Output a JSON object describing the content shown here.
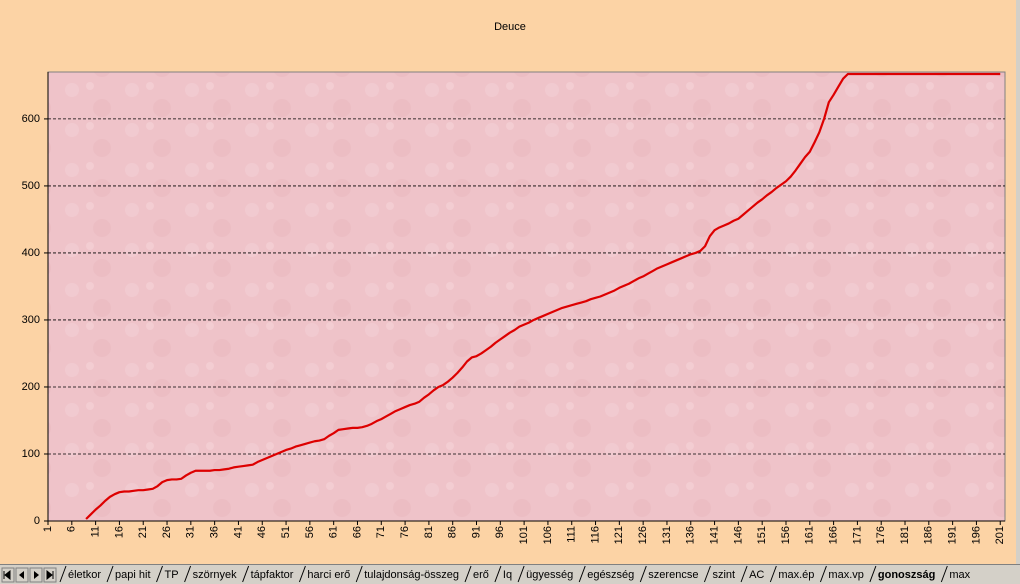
{
  "chart_data": {
    "type": "line",
    "title": "Deuce",
    "x": [
      1,
      2,
      3,
      4,
      5,
      6,
      7,
      8,
      9,
      10,
      11,
      12,
      13,
      14,
      15,
      16,
      17,
      18,
      19,
      20,
      21,
      22,
      23,
      24,
      25,
      26,
      27,
      28,
      29,
      30,
      31,
      32,
      33,
      34,
      35,
      36,
      37,
      38,
      39,
      40,
      41,
      42,
      43,
      44,
      45,
      46,
      47,
      48,
      49,
      50,
      51,
      52,
      53,
      54,
      55,
      56,
      57,
      58,
      59,
      60,
      61,
      62,
      63,
      64,
      65,
      66,
      67,
      68,
      69,
      70,
      71,
      72,
      73,
      74,
      75,
      76,
      77,
      78,
      79,
      80,
      81,
      82,
      83,
      84,
      85,
      86,
      87,
      88,
      89,
      90,
      91,
      92,
      93,
      94,
      95,
      96,
      97,
      98,
      99,
      100,
      101,
      102,
      103,
      104,
      105,
      106,
      107,
      108,
      109,
      110,
      111,
      112,
      113,
      114,
      115,
      116,
      117,
      118,
      119,
      120,
      121,
      122,
      123,
      124,
      125,
      126,
      127,
      128,
      129,
      130,
      131,
      132,
      133,
      134,
      135,
      136,
      137,
      138,
      139,
      140,
      141,
      142,
      143,
      144,
      145,
      146,
      147,
      148,
      149,
      150,
      151,
      152,
      153,
      154,
      155,
      156,
      157,
      158,
      159,
      160,
      161,
      162,
      163,
      164,
      165,
      166,
      167,
      168,
      169,
      170,
      171,
      172,
      173,
      174,
      175,
      176,
      177,
      178,
      179,
      180,
      181,
      182,
      183,
      184,
      185,
      186,
      187,
      188,
      189,
      190,
      191,
      192,
      193,
      194,
      195,
      196,
      197,
      198,
      199,
      200,
      201
    ],
    "series": [
      {
        "color": "#dd0000",
        "values": [
          null,
          null,
          null,
          null,
          null,
          null,
          null,
          null,
          3,
          10,
          17,
          23,
          30,
          36,
          40,
          43,
          44,
          44,
          45,
          46,
          46,
          47,
          48,
          52,
          58,
          61,
          62,
          62,
          63,
          68,
          72,
          75,
          75,
          75,
          75,
          76,
          76,
          77,
          78,
          80,
          81,
          82,
          83,
          84,
          88,
          91,
          94,
          97,
          100,
          103,
          106,
          108,
          111,
          113,
          115,
          117,
          119,
          120,
          122,
          127,
          131,
          136,
          137,
          138,
          139,
          139,
          140,
          142,
          145,
          149,
          152,
          156,
          160,
          164,
          167,
          170,
          173,
          175,
          178,
          184,
          189,
          195,
          200,
          203,
          208,
          214,
          221,
          229,
          238,
          244,
          246,
          250,
          255,
          260,
          266,
          271,
          276,
          281,
          285,
          290,
          293,
          296,
          300,
          303,
          306,
          309,
          312,
          315,
          318,
          320,
          322,
          324,
          326,
          328,
          331,
          333,
          335,
          338,
          341,
          344,
          348,
          351,
          354,
          358,
          362,
          365,
          369,
          373,
          377,
          380,
          383,
          386,
          389,
          392,
          395,
          398,
          400,
          403,
          410,
          425,
          434,
          438,
          441,
          444,
          448,
          451,
          457,
          463,
          469,
          475,
          480,
          486,
          491,
          497,
          502,
          507,
          514,
          523,
          533,
          543,
          551,
          565,
          580,
          600,
          625,
          636,
          648,
          660,
          667,
          667,
          667,
          667,
          667,
          667,
          667,
          667,
          667,
          667,
          667,
          667,
          667,
          667,
          667,
          667,
          667,
          667,
          667,
          667,
          667,
          667,
          667,
          667,
          667,
          667,
          667,
          667,
          667,
          667,
          667,
          667,
          667
        ]
      }
    ],
    "xlim": [
      1,
      202
    ],
    "xticks": [
      1,
      6,
      11,
      16,
      21,
      26,
      31,
      36,
      41,
      46,
      51,
      56,
      61,
      66,
      71,
      76,
      81,
      86,
      91,
      96,
      101,
      106,
      111,
      116,
      121,
      126,
      131,
      136,
      141,
      146,
      151,
      156,
      161,
      166,
      171,
      176,
      181,
      186,
      191,
      196,
      201
    ],
    "ylim": [
      0,
      670
    ],
    "yticks": [
      0,
      100,
      200,
      300,
      400,
      500,
      600
    ],
    "grid": true
  },
  "sheet_tabs": {
    "tabs": [
      "életkor",
      "papi hit",
      "TP",
      "szörnyek",
      "tápfaktor",
      "harci erő",
      "tulajdonság-összeg",
      "erő",
      "Iq",
      "ügyesség",
      "egészség",
      "szerencse",
      "szint",
      "AC",
      "max.ép",
      "max.vp",
      "gonoszság",
      "max"
    ],
    "active": 16
  }
}
